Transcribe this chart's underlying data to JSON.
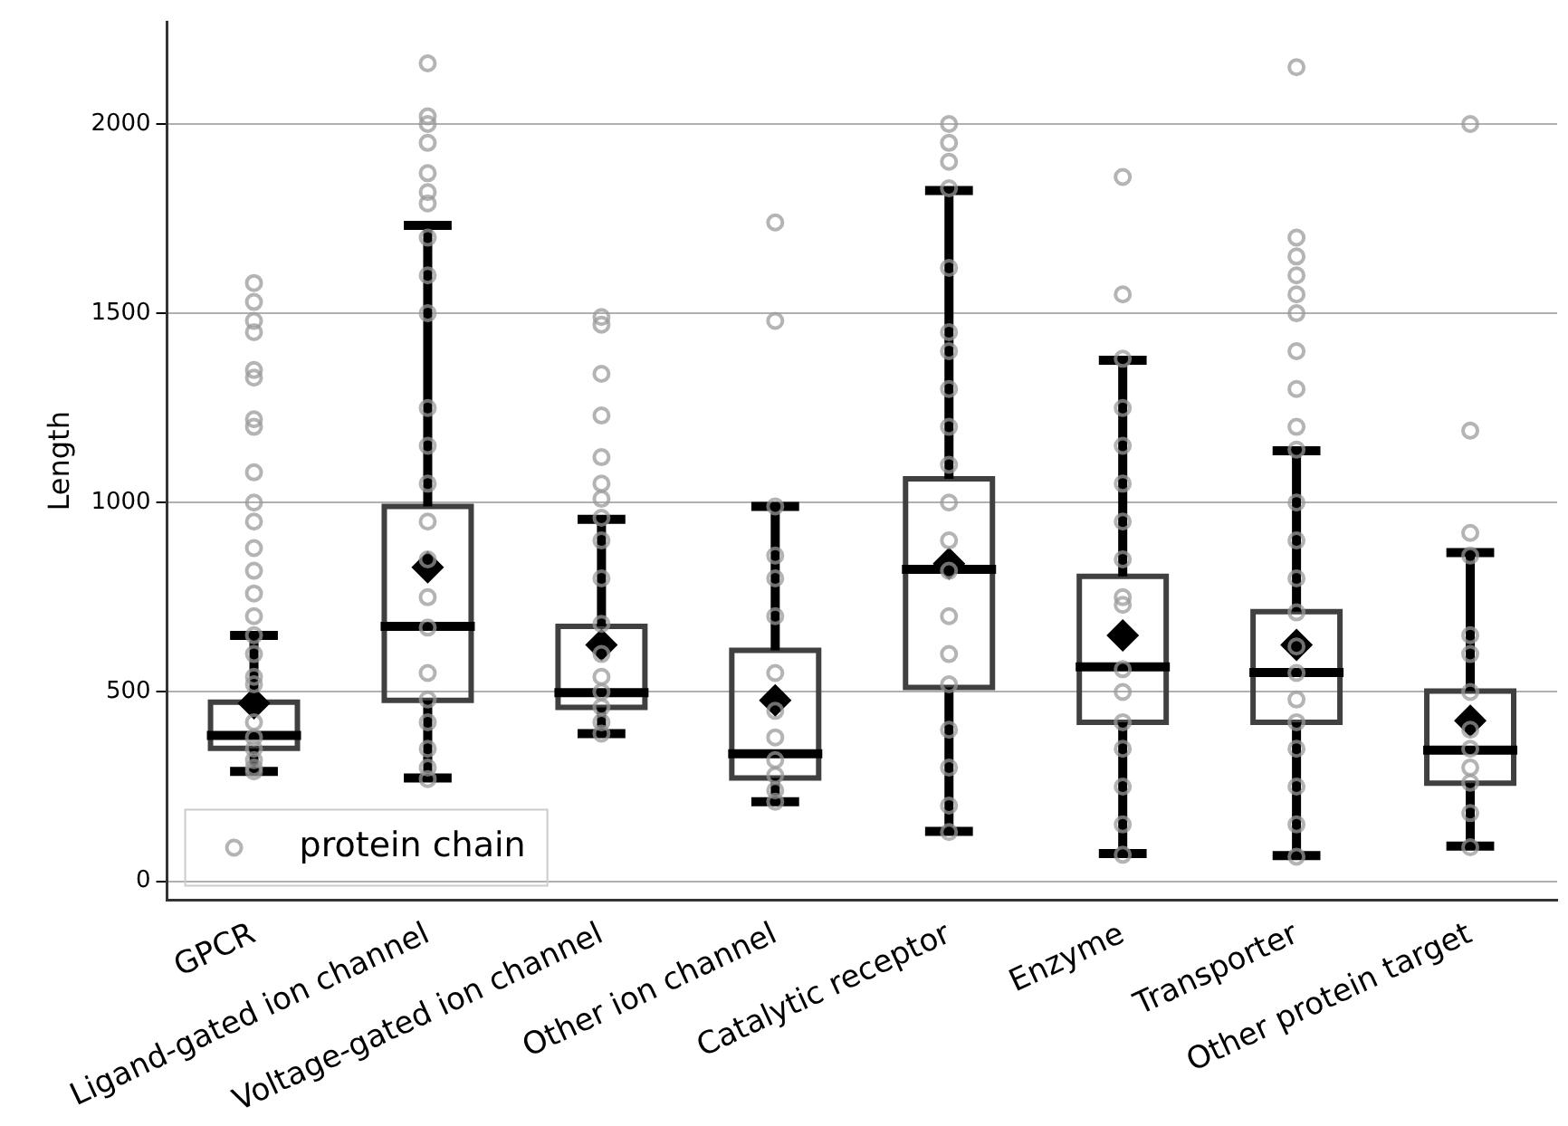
{
  "chart_data": {
    "type": "box",
    "ylabel": "Length",
    "categories": [
      "GPCR",
      "Ligand-gated ion channel",
      "Voltage-gated ion channel",
      "Other ion channel",
      "Catalytic receptor",
      "Enzyme",
      "Transporter",
      "Other protein target"
    ],
    "ylim": [
      -50,
      2270
    ],
    "yticks": [
      0,
      500,
      1000,
      1500,
      2000
    ],
    "grid": "y",
    "legend": "bottom left",
    "marker": "circle",
    "series": [
      {
        "color": "#404040",
        "boxes": [
          {
            "low": 290,
            "q1": 351,
            "median": 385,
            "q3": 473,
            "high": 649,
            "mean": 470
          },
          {
            "low": 273,
            "q1": 478,
            "median": 673,
            "q3": 990,
            "high": 1732,
            "mean": 829
          },
          {
            "low": 390,
            "q1": 459,
            "median": 498,
            "q3": 673,
            "high": 956,
            "mean": 624
          },
          {
            "low": 210,
            "q1": 273,
            "median": 337,
            "q3": 610,
            "high": 990,
            "mean": 478
          },
          {
            "low": 132,
            "q1": 512,
            "median": 824,
            "q3": 1063,
            "high": 1824,
            "mean": 839
          },
          {
            "low": 73,
            "q1": 420,
            "median": 566,
            "q3": 805,
            "high": 1376,
            "mean": 649
          },
          {
            "low": 68,
            "q1": 420,
            "median": 551,
            "q3": 712,
            "high": 1137,
            "mean": 624
          },
          {
            "low": 93,
            "q1": 259,
            "median": 346,
            "q3": 502,
            "high": 868,
            "mean": 424
          }
        ]
      },
      {
        "type": "scatter",
        "name": "protein chain",
        "color": "#999999",
        "x": [
          "GPCR",
          "GPCR",
          "GPCR",
          "GPCR",
          "GPCR",
          "GPCR",
          "GPCR",
          "GPCR",
          "GPCR",
          "GPCR",
          "GPCR",
          "GPCR",
          "GPCR",
          "GPCR",
          "GPCR",
          "GPCR",
          "GPCR",
          "GPCR",
          "GPCR",
          "GPCR",
          "GPCR",
          "GPCR",
          "GPCR",
          "GPCR",
          "GPCR",
          "Ligand-gated ion channel",
          "Ligand-gated ion channel",
          "Ligand-gated ion channel",
          "Ligand-gated ion channel",
          "Ligand-gated ion channel",
          "Ligand-gated ion channel",
          "Ligand-gated ion channel",
          "Ligand-gated ion channel",
          "Ligand-gated ion channel",
          "Ligand-gated ion channel",
          "Ligand-gated ion channel",
          "Ligand-gated ion channel",
          "Ligand-gated ion channel",
          "Ligand-gated ion channel",
          "Ligand-gated ion channel",
          "Ligand-gated ion channel",
          "Ligand-gated ion channel",
          "Ligand-gated ion channel",
          "Ligand-gated ion channel",
          "Ligand-gated ion channel",
          "Ligand-gated ion channel",
          "Ligand-gated ion channel",
          "Ligand-gated ion channel",
          "Voltage-gated ion channel",
          "Voltage-gated ion channel",
          "Voltage-gated ion channel",
          "Voltage-gated ion channel",
          "Voltage-gated ion channel",
          "Voltage-gated ion channel",
          "Voltage-gated ion channel",
          "Voltage-gated ion channel",
          "Voltage-gated ion channel",
          "Voltage-gated ion channel",
          "Voltage-gated ion channel",
          "Voltage-gated ion channel",
          "Voltage-gated ion channel",
          "Voltage-gated ion channel",
          "Voltage-gated ion channel",
          "Voltage-gated ion channel",
          "Voltage-gated ion channel",
          "Other ion channel",
          "Other ion channel",
          "Other ion channel",
          "Other ion channel",
          "Other ion channel",
          "Other ion channel",
          "Other ion channel",
          "Other ion channel",
          "Other ion channel",
          "Other ion channel",
          "Other ion channel",
          "Other ion channel",
          "Other ion channel",
          "Catalytic receptor",
          "Catalytic receptor",
          "Catalytic receptor",
          "Catalytic receptor",
          "Catalytic receptor",
          "Catalytic receptor",
          "Catalytic receptor",
          "Catalytic receptor",
          "Catalytic receptor",
          "Catalytic receptor",
          "Catalytic receptor",
          "Catalytic receptor",
          "Catalytic receptor",
          "Catalytic receptor",
          "Catalytic receptor",
          "Catalytic receptor",
          "Catalytic receptor",
          "Catalytic receptor",
          "Catalytic receptor",
          "Catalytic receptor",
          "Enzyme",
          "Enzyme",
          "Enzyme",
          "Enzyme",
          "Enzyme",
          "Enzyme",
          "Enzyme",
          "Enzyme",
          "Enzyme",
          "Enzyme",
          "Enzyme",
          "Enzyme",
          "Enzyme",
          "Enzyme",
          "Enzyme",
          "Enzyme",
          "Enzyme",
          "Transporter",
          "Transporter",
          "Transporter",
          "Transporter",
          "Transporter",
          "Transporter",
          "Transporter",
          "Transporter",
          "Transporter",
          "Transporter",
          "Transporter",
          "Transporter",
          "Transporter",
          "Transporter",
          "Transporter",
          "Transporter",
          "Transporter",
          "Transporter",
          "Transporter",
          "Transporter",
          "Transporter",
          "Transporter",
          "Other protein target",
          "Other protein target",
          "Other protein target",
          "Other protein target",
          "Other protein target",
          "Other protein target",
          "Other protein target",
          "Other protein target",
          "Other protein target",
          "Other protein target",
          "Other protein target",
          "Other protein target",
          "Other protein target"
        ],
        "values": [
          290,
          300,
          320,
          350,
          380,
          420,
          540,
          520,
          600,
          650,
          700,
          760,
          820,
          880,
          950,
          1000,
          1080,
          1200,
          1220,
          1330,
          1350,
          1450,
          1480,
          1530,
          1580,
          270,
          300,
          350,
          420,
          480,
          550,
          670,
          750,
          850,
          950,
          1050,
          1150,
          1250,
          1500,
          1600,
          1700,
          1790,
          1870,
          1950,
          2000,
          2020,
          2160,
          1820,
          390,
          420,
          460,
          500,
          540,
          600,
          680,
          800,
          900,
          960,
          1010,
          1050,
          1120,
          1230,
          1340,
          1470,
          1490,
          210,
          240,
          280,
          320,
          380,
          450,
          550,
          700,
          800,
          860,
          990,
          1480,
          1740,
          130,
          200,
          300,
          400,
          520,
          600,
          700,
          820,
          900,
          1000,
          1100,
          1200,
          1300,
          1400,
          1450,
          1620,
          1830,
          1900,
          1950,
          2000,
          70,
          150,
          250,
          350,
          420,
          500,
          560,
          730,
          750,
          850,
          950,
          1050,
          1150,
          1250,
          1380,
          1550,
          1860,
          65,
          150,
          250,
          350,
          420,
          480,
          550,
          620,
          710,
          800,
          900,
          1000,
          1140,
          1200,
          1300,
          1400,
          1500,
          1550,
          1600,
          1650,
          1700,
          2150,
          90,
          180,
          260,
          300,
          350,
          400,
          500,
          600,
          650,
          860,
          920,
          1190,
          2000
        ]
      }
    ]
  }
}
